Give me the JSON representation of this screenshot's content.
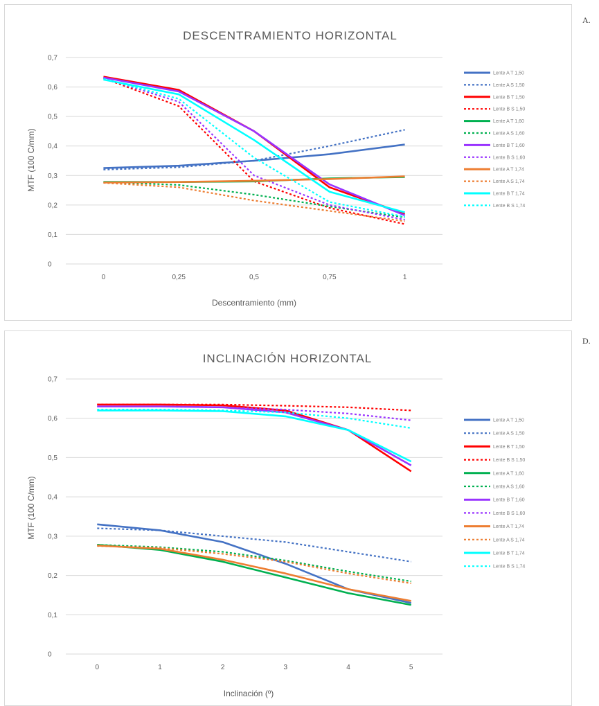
{
  "panel_letters": [
    "A.",
    "D."
  ],
  "chart_data": [
    {
      "type": "line",
      "title": "DESCENTRAMIENTO HORIZONTAL",
      "xlabel": "Descentramiento (mm)",
      "ylabel": "MTF (100 C/mm)",
      "categories": [
        "0",
        "0,25",
        "0,5",
        "0,75",
        "1"
      ],
      "ylim": [
        0,
        0.7
      ],
      "yticks": [
        "0",
        "0,1",
        "0,2",
        "0,3",
        "0,4",
        "0,5",
        "0,6",
        "0,7"
      ],
      "grid": true,
      "legend_position": "right",
      "series": [
        {
          "name": "Lente A T 1,50",
          "color": "#4472c4",
          "dash": false,
          "values": [
            0.325,
            0.333,
            0.35,
            0.372,
            0.405
          ]
        },
        {
          "name": "Lente A S 1,50",
          "color": "#4472c4",
          "dash": true,
          "values": [
            0.32,
            0.328,
            0.35,
            0.4,
            0.455
          ]
        },
        {
          "name": "Lente B T 1,50",
          "color": "#ff0000",
          "dash": false,
          "values": [
            0.635,
            0.59,
            0.45,
            0.26,
            0.17
          ]
        },
        {
          "name": "Lente B S 1,50",
          "color": "#ff0000",
          "dash": true,
          "values": [
            0.63,
            0.535,
            0.28,
            0.19,
            0.135
          ]
        },
        {
          "name": "Lente A T 1,60",
          "color": "#00b050",
          "dash": false,
          "values": [
            0.278,
            0.278,
            0.28,
            0.29,
            0.295
          ]
        },
        {
          "name": "Lente A S 1,60",
          "color": "#00b050",
          "dash": true,
          "values": [
            0.278,
            0.268,
            0.235,
            0.195,
            0.158
          ]
        },
        {
          "name": "Lente B T 1,60",
          "color": "#9933ff",
          "dash": false,
          "values": [
            0.632,
            0.585,
            0.45,
            0.27,
            0.165
          ]
        },
        {
          "name": "Lente B S 1,60",
          "color": "#9933ff",
          "dash": true,
          "values": [
            0.63,
            0.55,
            0.3,
            0.2,
            0.15
          ]
        },
        {
          "name": "Lente A T 1,74",
          "color": "#ed7d31",
          "dash": false,
          "values": [
            0.276,
            0.278,
            0.282,
            0.288,
            0.297
          ]
        },
        {
          "name": "Lente A S 1,74",
          "color": "#ed7d31",
          "dash": true,
          "values": [
            0.275,
            0.26,
            0.215,
            0.18,
            0.145
          ]
        },
        {
          "name": "Lente B T 1,74",
          "color": "#00ffff",
          "dash": false,
          "values": [
            0.625,
            0.575,
            0.42,
            0.245,
            0.175
          ]
        },
        {
          "name": "Lente B S 1,74",
          "color": "#00ffff",
          "dash": true,
          "values": [
            0.628,
            0.56,
            0.36,
            0.21,
            0.16
          ]
        }
      ]
    },
    {
      "type": "line",
      "title": "INCLINACIÓN HORIZONTAL",
      "xlabel": "Inclinación (º)",
      "ylabel": "MTF (100 C/mm)",
      "categories": [
        "0",
        "1",
        "2",
        "3",
        "4",
        "5"
      ],
      "ylim": [
        0,
        0.7
      ],
      "yticks": [
        "0",
        "0,1",
        "0,2",
        "0,3",
        "0,4",
        "0,5",
        "0,6",
        "0,7"
      ],
      "grid": true,
      "legend_position": "right",
      "series": [
        {
          "name": "Lente A T 1,50",
          "color": "#4472c4",
          "dash": false,
          "values": [
            0.33,
            0.315,
            0.285,
            0.23,
            0.165,
            0.13
          ]
        },
        {
          "name": "Lente A S 1,50",
          "color": "#4472c4",
          "dash": true,
          "values": [
            0.32,
            0.315,
            0.3,
            0.285,
            0.26,
            0.235
          ]
        },
        {
          "name": "Lente B T 1,50",
          "color": "#ff0000",
          "dash": false,
          "values": [
            0.635,
            0.635,
            0.633,
            0.62,
            0.57,
            0.465
          ]
        },
        {
          "name": "Lente B S 1,50",
          "color": "#ff0000",
          "dash": true,
          "values": [
            0.635,
            0.635,
            0.635,
            0.632,
            0.628,
            0.62
          ]
        },
        {
          "name": "Lente A T 1,60",
          "color": "#00b050",
          "dash": false,
          "values": [
            0.278,
            0.265,
            0.235,
            0.195,
            0.155,
            0.125
          ]
        },
        {
          "name": "Lente A S 1,60",
          "color": "#00b050",
          "dash": true,
          "values": [
            0.278,
            0.272,
            0.26,
            0.238,
            0.21,
            0.185
          ]
        },
        {
          "name": "Lente B T 1,60",
          "color": "#9933ff",
          "dash": false,
          "values": [
            0.63,
            0.63,
            0.628,
            0.615,
            0.57,
            0.48
          ]
        },
        {
          "name": "Lente B S 1,60",
          "color": "#9933ff",
          "dash": true,
          "values": [
            0.63,
            0.63,
            0.628,
            0.622,
            0.612,
            0.595
          ]
        },
        {
          "name": "Lente A T 1,74",
          "color": "#ed7d31",
          "dash": false,
          "values": [
            0.276,
            0.268,
            0.24,
            0.205,
            0.165,
            0.135
          ]
        },
        {
          "name": "Lente A S 1,74",
          "color": "#ed7d31",
          "dash": true,
          "values": [
            0.275,
            0.27,
            0.255,
            0.235,
            0.205,
            0.18
          ]
        },
        {
          "name": "Lente B T 1,74",
          "color": "#00ffff",
          "dash": false,
          "values": [
            0.62,
            0.62,
            0.618,
            0.605,
            0.57,
            0.49
          ]
        },
        {
          "name": "Lente B S 1,74",
          "color": "#00ffff",
          "dash": true,
          "values": [
            0.622,
            0.622,
            0.62,
            0.615,
            0.6,
            0.575
          ]
        }
      ]
    }
  ]
}
